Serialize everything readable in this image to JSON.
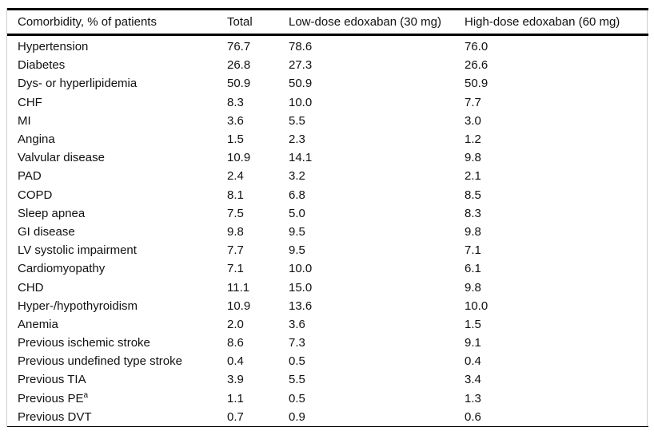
{
  "table": {
    "columns": [
      "Comorbidity, % of patients",
      "Total",
      "Low-dose edoxaban (30 mg)",
      "High-dose edoxaban (60 mg)"
    ],
    "rows": [
      {
        "label": "Hypertension",
        "total": "76.7",
        "low": "78.6",
        "high": "76.0"
      },
      {
        "label": "Diabetes",
        "total": "26.8",
        "low": "27.3",
        "high": "26.6"
      },
      {
        "label": "Dys- or hyperlipidemia",
        "total": "50.9",
        "low": "50.9",
        "high": "50.9"
      },
      {
        "label": "CHF",
        "total": "8.3",
        "low": "10.0",
        "high": "7.7"
      },
      {
        "label": "MI",
        "total": "3.6",
        "low": "5.5",
        "high": "3.0"
      },
      {
        "label": "Angina",
        "total": "1.5",
        "low": "2.3",
        "high": "1.2"
      },
      {
        "label": "Valvular disease",
        "total": "10.9",
        "low": "14.1",
        "high": "9.8"
      },
      {
        "label": "PAD",
        "total": "2.4",
        "low": "3.2",
        "high": "2.1"
      },
      {
        "label": "COPD",
        "total": "8.1",
        "low": "6.8",
        "high": "8.5"
      },
      {
        "label": "Sleep apnea",
        "total": "7.5",
        "low": "5.0",
        "high": "8.3"
      },
      {
        "label": "GI disease",
        "total": "9.8",
        "low": "9.5",
        "high": "9.8"
      },
      {
        "label": "LV systolic impairment",
        "total": "7.7",
        "low": "9.5",
        "high": "7.1"
      },
      {
        "label": "Cardiomyopathy",
        "total": "7.1",
        "low": "10.0",
        "high": "6.1"
      },
      {
        "label": "CHD",
        "total": "11.1",
        "low": "15.0",
        "high": "9.8"
      },
      {
        "label": "Hyper-/hypothyroidism",
        "total": "10.9",
        "low": "13.6",
        "high": "10.0"
      },
      {
        "label": "Anemia",
        "total": "2.0",
        "low": "3.6",
        "high": "1.5"
      },
      {
        "label": "Previous ischemic stroke",
        "total": "8.6",
        "low": "7.3",
        "high": "9.1"
      },
      {
        "label": "Previous undefined type stroke",
        "total": "0.4",
        "low": "0.5",
        "high": "0.4"
      },
      {
        "label": "Previous TIA",
        "total": "3.9",
        "low": "5.5",
        "high": "3.4"
      },
      {
        "label": "Previous PE",
        "sup": "a",
        "total": "1.1",
        "low": "0.5",
        "high": "1.3"
      },
      {
        "label": "Previous DVT",
        "total": "0.7",
        "low": "0.9",
        "high": "0.6"
      }
    ]
  },
  "colors": {
    "text": "#111111",
    "rule_strong": "#000000",
    "rule_light": "#cccccc",
    "background": "#ffffff"
  }
}
